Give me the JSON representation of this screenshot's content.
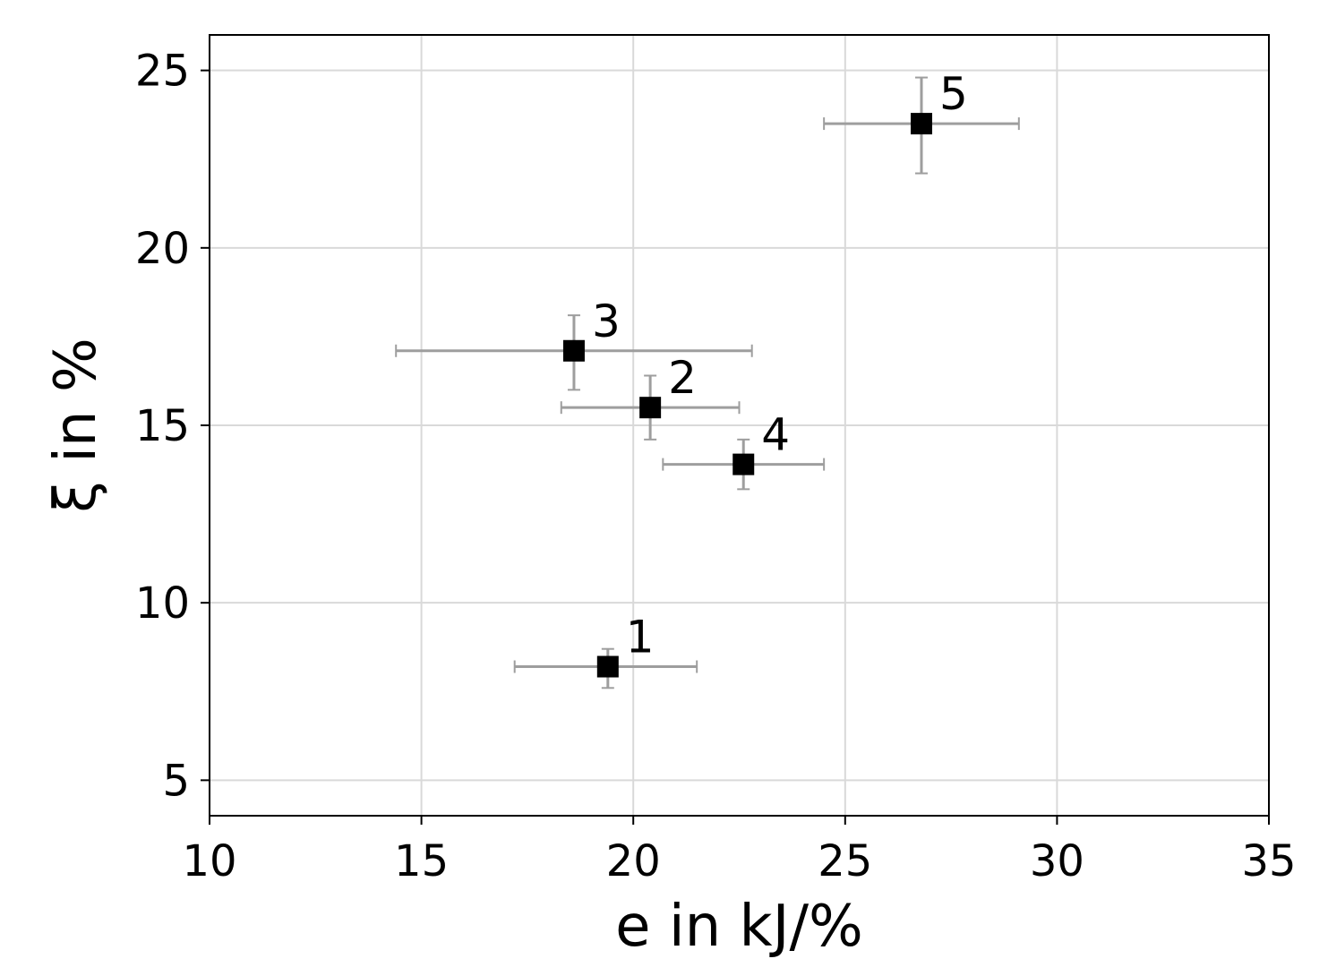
{
  "chart_data": {
    "type": "scatter",
    "xlabel": "e in kJ/%",
    "ylabel": "ξ in %",
    "xlim": [
      10,
      35
    ],
    "ylim": [
      4,
      26
    ],
    "xticks": [
      "10",
      "15",
      "20",
      "25",
      "30",
      "35"
    ],
    "yticks": [
      "5",
      "10",
      "15",
      "20",
      "25"
    ],
    "grid": true,
    "marker": "square",
    "marker_color": "#000000",
    "errorbar_color": "#9e9e9e",
    "points": [
      {
        "label": "1",
        "x": 19.4,
        "y": 8.2,
        "x_err": [
          17.2,
          21.5
        ],
        "y_err": [
          7.6,
          8.7
        ]
      },
      {
        "label": "2",
        "x": 20.4,
        "y": 15.5,
        "x_err": [
          18.3,
          22.5
        ],
        "y_err": [
          14.6,
          16.4
        ]
      },
      {
        "label": "3",
        "x": 18.6,
        "y": 17.1,
        "x_err": [
          14.4,
          22.8
        ],
        "y_err": [
          16.0,
          18.1
        ]
      },
      {
        "label": "4",
        "x": 22.6,
        "y": 13.9,
        "x_err": [
          20.7,
          24.5
        ],
        "y_err": [
          13.2,
          14.6
        ]
      },
      {
        "label": "5",
        "x": 26.8,
        "y": 23.5,
        "x_err": [
          24.5,
          29.1
        ],
        "y_err": [
          22.1,
          24.8
        ]
      }
    ]
  }
}
